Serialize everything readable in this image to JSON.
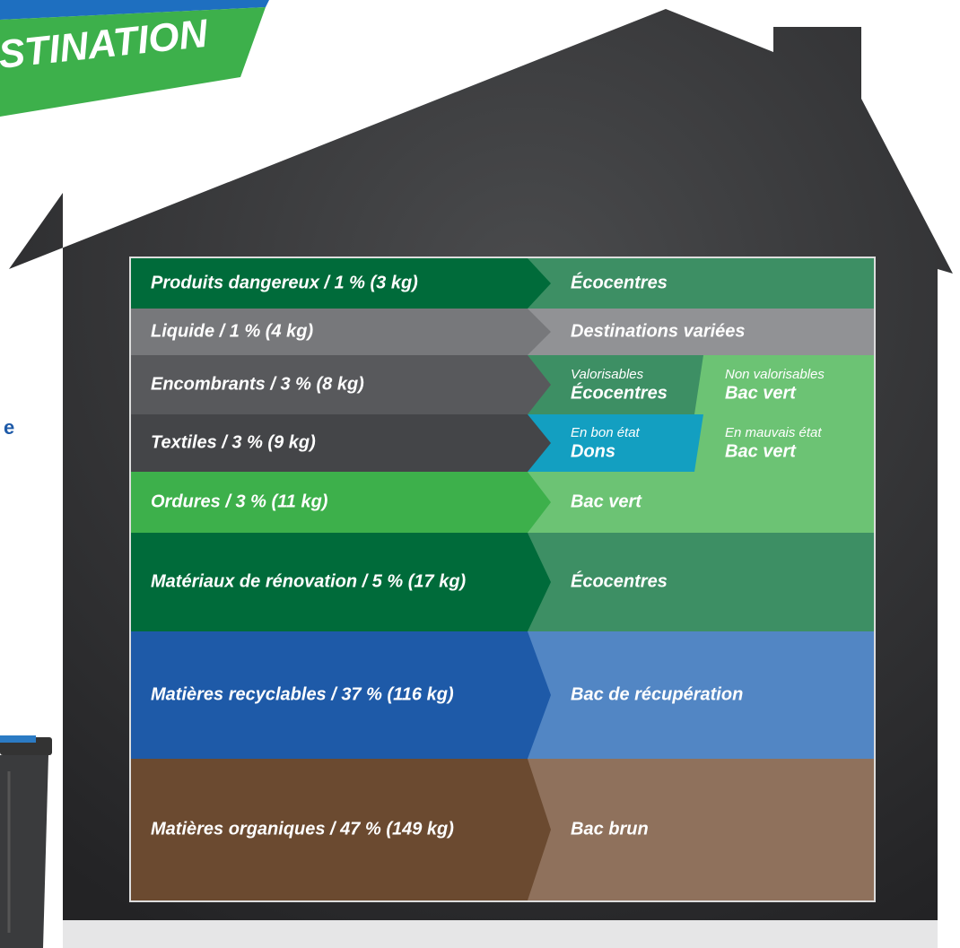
{
  "banner": {
    "title": "STINATION"
  },
  "side_fragment": "e",
  "rows": [
    {
      "label": "Produits dangereux / 1 % (3 kg)",
      "destination": "Écocentres"
    },
    {
      "label": "Liquide / 1 % (4 kg)",
      "destination": "Destinations variées"
    },
    {
      "label": "Encombrants / 3 % (8 kg)",
      "options": [
        {
          "qualifier": "Valorisables",
          "destination": "Écocentres"
        },
        {
          "qualifier": "Non valorisables",
          "destination": "Bac vert"
        }
      ]
    },
    {
      "label": "Textiles / 3 % (9 kg)",
      "options": [
        {
          "qualifier": "En bon état",
          "destination": "Dons"
        },
        {
          "qualifier": "En mauvais état",
          "destination": "Bac vert"
        }
      ]
    },
    {
      "label": "Ordures / 3 % (11 kg)",
      "destination": "Bac vert"
    },
    {
      "label": "Matériaux de rénovation / 5 % (17 kg)",
      "destination": "Écocentres"
    },
    {
      "label": "Matières recyclables / 37 % (116 kg)",
      "destination": "Bac de récupération"
    },
    {
      "label": "Matières organiques / 47 % (149 kg)",
      "destination": "Bac brun"
    }
  ]
}
